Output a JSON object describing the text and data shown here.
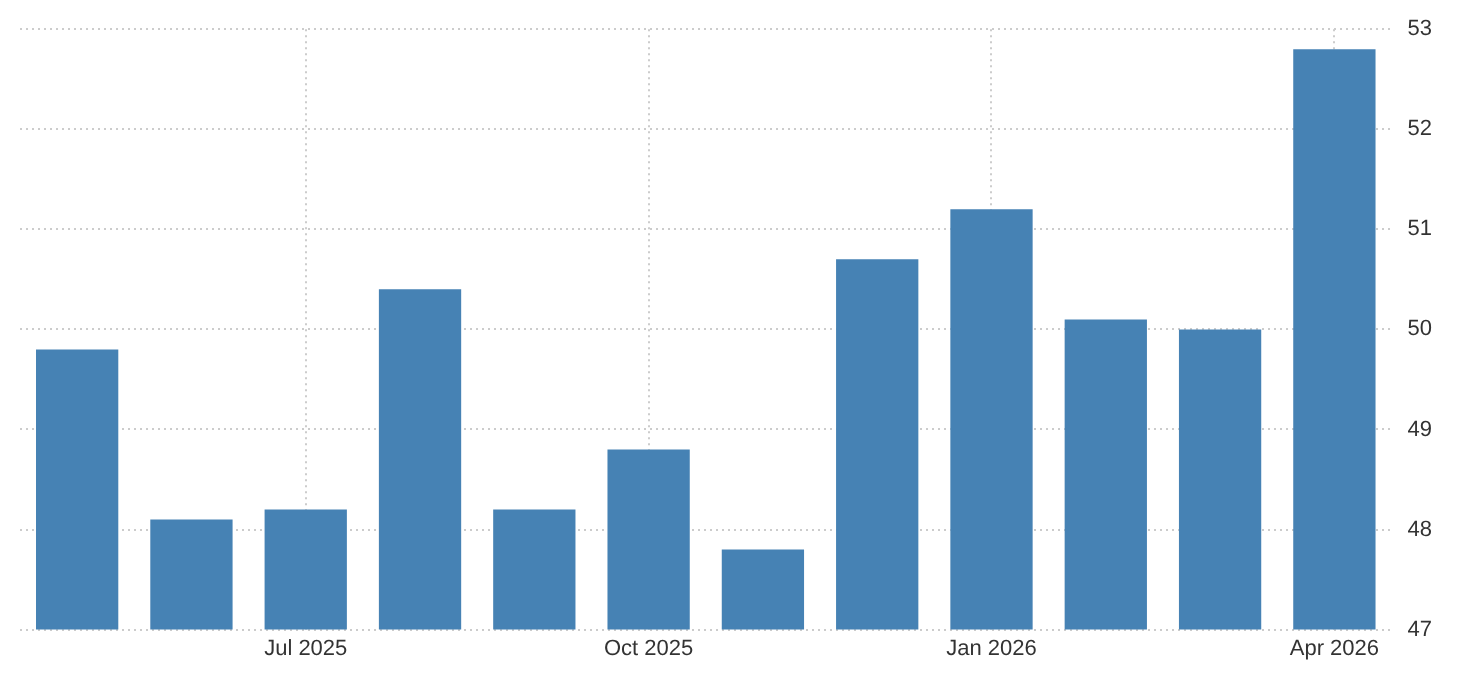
{
  "chart_data": {
    "type": "bar",
    "categories": [
      null,
      null,
      "Jul 2025",
      null,
      null,
      "Oct 2025",
      null,
      null,
      "Jan 2026",
      null,
      null,
      "Apr 2026"
    ],
    "values": [
      49.8,
      48.1,
      48.2,
      50.4,
      48.2,
      48.8,
      47.8,
      50.7,
      51.2,
      50.1,
      50.0,
      52.8
    ],
    "color": "#4682b4",
    "ylim": [
      47,
      53
    ],
    "yticks": [
      47,
      48,
      49,
      50,
      51,
      52,
      53
    ],
    "grid": true
  }
}
